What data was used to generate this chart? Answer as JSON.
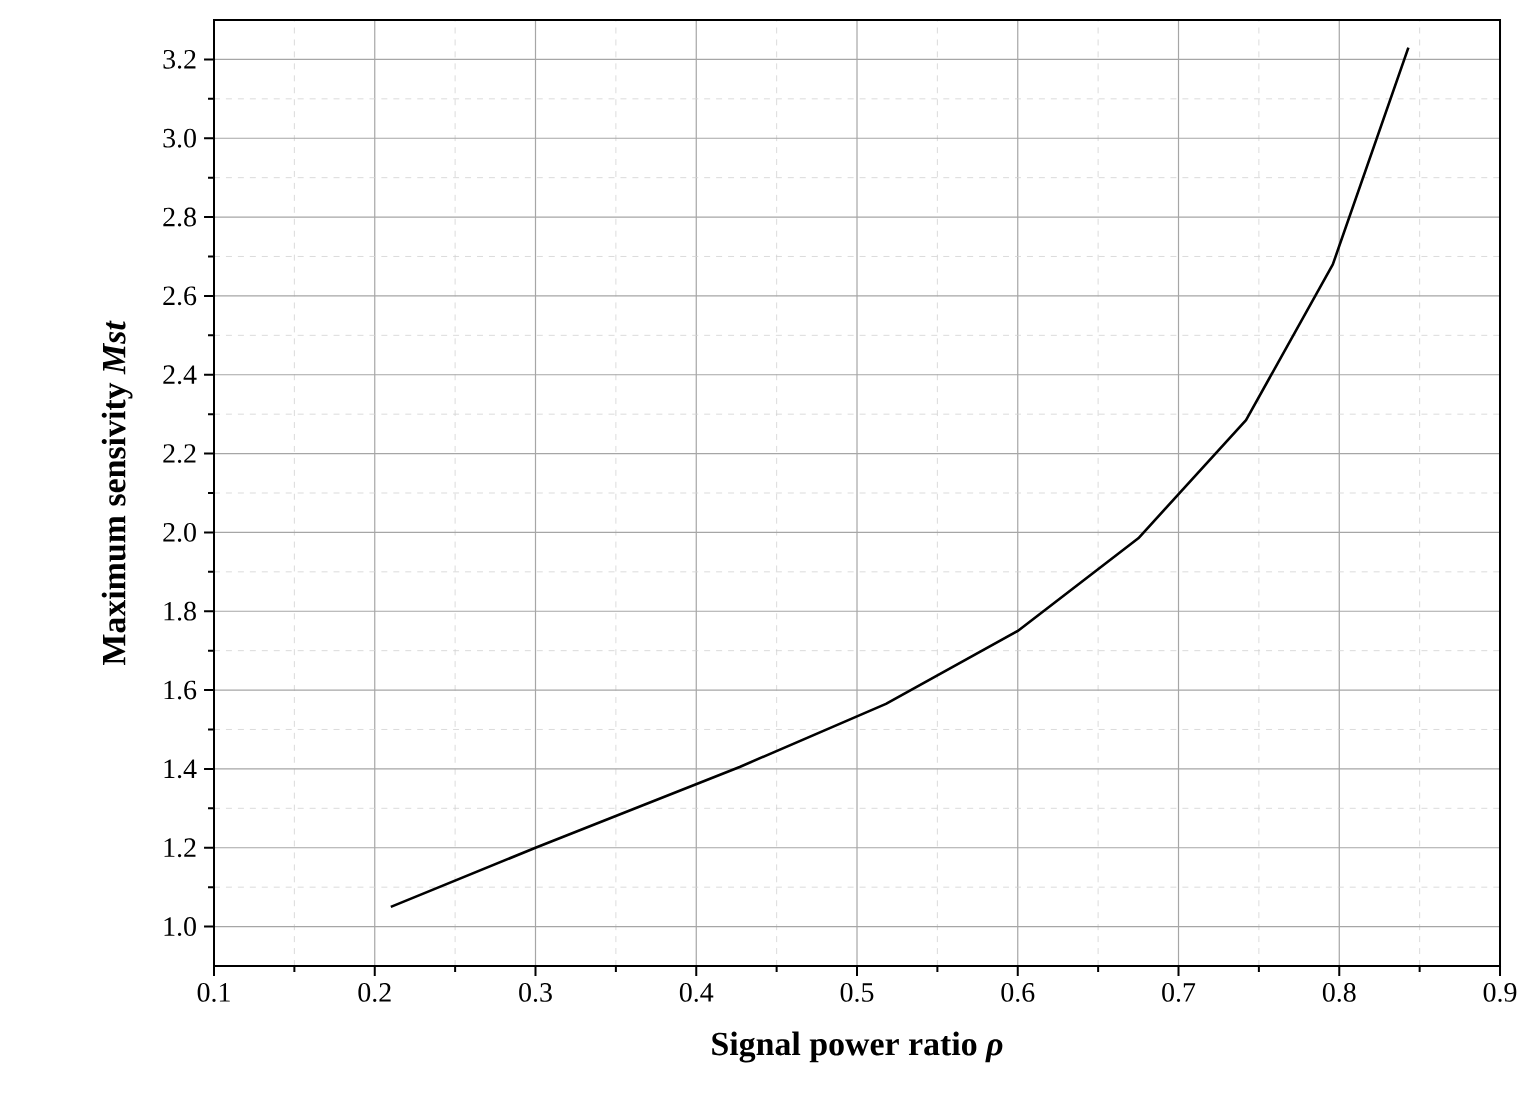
{
  "chart_data": {
    "type": "line",
    "xlabel": "Signal power ratio *ρ*",
    "ylabel": "Maximum sensivity *Mst*",
    "x": [
      0.21,
      0.3,
      0.427,
      0.518,
      0.6,
      0.675,
      0.742,
      0.796,
      0.843
    ],
    "series": [
      {
        "color": "#000000",
        "values": [
          1.05,
          1.2,
          1.405,
          1.565,
          1.75,
          1.985,
          2.285,
          2.68,
          3.23
        ]
      }
    ],
    "xlim": [
      0.1,
      0.9
    ],
    "ylim": [
      0.9,
      3.3
    ],
    "xticks": [
      0.1,
      0.2,
      0.3,
      0.4,
      0.5,
      0.6,
      0.7,
      0.8,
      0.9
    ],
    "yticks": [
      {
        "value": 1.0,
        "label": "1.0"
      },
      {
        "value": 1.2,
        "label": "1.2"
      },
      {
        "value": 1.4,
        "label": "1.4"
      },
      {
        "value": 1.6,
        "label": "1.6"
      },
      {
        "value": 1.8,
        "label": "1.8"
      },
      {
        "value": 2.0,
        "label": "2.0"
      },
      {
        "value": 2.2,
        "label": "2.2"
      },
      {
        "value": 2.4,
        "label": "2.4"
      },
      {
        "value": 2.6,
        "label": "2.6"
      },
      {
        "value": 2.8,
        "label": "2.8"
      },
      {
        "value": 3.0,
        "label": "3.0"
      },
      {
        "value": 3.2,
        "label": "3.2"
      }
    ],
    "grid": true,
    "marker": "none",
    "line_style": "solid"
  }
}
